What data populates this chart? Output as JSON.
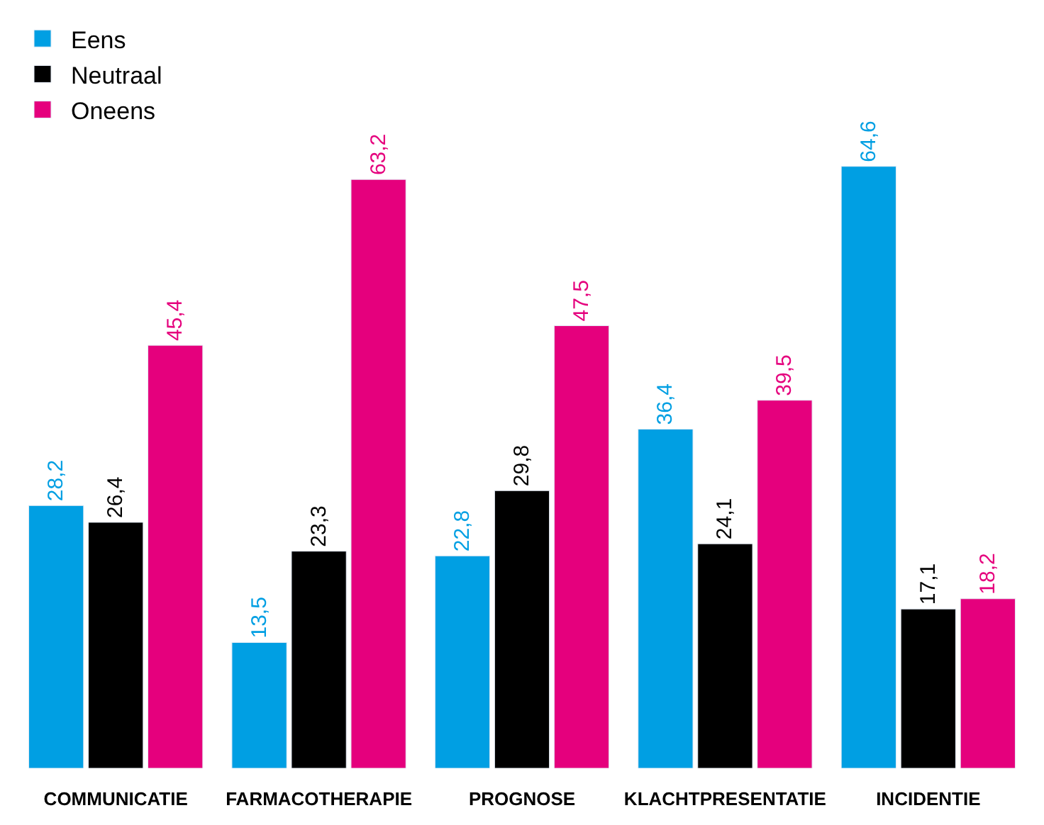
{
  "chart_data": {
    "type": "bar",
    "categories": [
      "COMMUNICATIE",
      "FARMACOTHERAPIE",
      "PROGNOSE",
      "KLACHTPRESENTATIE",
      "INCIDENTIE"
    ],
    "series": [
      {
        "name": "Eens",
        "color": "#009fe3",
        "values": [
          28.2,
          13.5,
          22.8,
          36.4,
          64.6
        ],
        "value_labels": [
          "28,2",
          "13,5",
          "22,8",
          "36,4",
          "64,6"
        ]
      },
      {
        "name": "Neutraal",
        "color": "#000000",
        "values": [
          26.4,
          23.3,
          29.8,
          24.1,
          17.1
        ],
        "value_labels": [
          "26,4",
          "23,3",
          "29,8",
          "24,1",
          "17,1"
        ]
      },
      {
        "name": "Oneens",
        "color": "#e5007d",
        "values": [
          45.4,
          63.2,
          47.5,
          39.5,
          18.2
        ],
        "value_labels": [
          "45,4",
          "63,2",
          "47,5",
          "39,5",
          "18,2"
        ]
      }
    ],
    "legend": "top left"
  }
}
